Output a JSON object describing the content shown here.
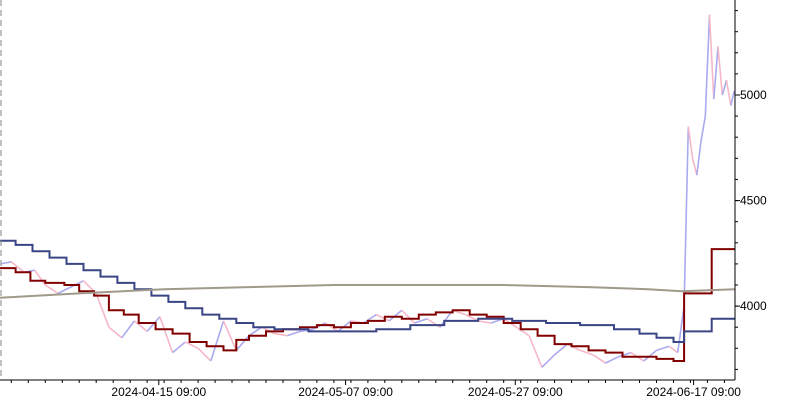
{
  "chart_data": {
    "type": "line",
    "title": "",
    "xlabel": "",
    "ylabel": "",
    "x_range": [
      "2024-03-27 16:00",
      "2024-06-22 06:00"
    ],
    "ylim": [
      3650,
      5450
    ],
    "grid": false,
    "legend": "none",
    "x_ticks": [
      {
        "date": "2024-04-15 09:00",
        "label": "2024-04-15 09:00"
      },
      {
        "date": "2024-05-07 09:00",
        "label": "2024-05-07 09:00"
      },
      {
        "date": "2024-05-27 09:00",
        "label": "2024-05-27 09:00"
      },
      {
        "date": "2024-06-17 09:00",
        "label": "2024-06-17 09:00"
      }
    ],
    "y_ticks": [
      {
        "value": 4000,
        "label": "4000"
      },
      {
        "value": 4500,
        "label": "4500"
      },
      {
        "value": 5000,
        "label": "5000"
      }
    ],
    "series": [
      {
        "kind": "price",
        "up_color": "#aaaaf0",
        "down_color": "#f5b8c8",
        "points": [
          [
            "2024-03-27 18:00",
            4200
          ],
          [
            "2024-03-29 00:00",
            4210
          ],
          [
            "2024-03-30 12:00",
            4160
          ],
          [
            "2024-03-31 18:00",
            4170
          ],
          [
            "2024-04-02 00:00",
            4100
          ],
          [
            "2024-04-03 12:00",
            4060
          ],
          [
            "2024-04-05 00:00",
            4090
          ],
          [
            "2024-04-06 12:00",
            4120
          ],
          [
            "2024-04-08 00:00",
            4060
          ],
          [
            "2024-04-09 12:00",
            3900
          ],
          [
            "2024-04-11 00:00",
            3850
          ],
          [
            "2024-04-12 12:00",
            3930
          ],
          [
            "2024-04-14 00:00",
            3880
          ],
          [
            "2024-04-15 12:00",
            3950
          ],
          [
            "2024-04-17 00:00",
            3780
          ],
          [
            "2024-04-18 12:00",
            3830
          ],
          [
            "2024-04-20 00:00",
            3800
          ],
          [
            "2024-04-21 12:00",
            3740
          ],
          [
            "2024-04-23 00:00",
            3930
          ],
          [
            "2024-04-24 12:00",
            3790
          ],
          [
            "2024-04-26 00:00",
            3860
          ],
          [
            "2024-04-27 12:00",
            3900
          ],
          [
            "2024-04-29 00:00",
            3870
          ],
          [
            "2024-04-30 12:00",
            3860
          ],
          [
            "2024-05-02 00:00",
            3880
          ],
          [
            "2024-05-03 12:00",
            3890
          ],
          [
            "2024-05-05 00:00",
            3920
          ],
          [
            "2024-05-06 12:00",
            3880
          ],
          [
            "2024-05-08 00:00",
            3930
          ],
          [
            "2024-05-09 12:00",
            3920
          ],
          [
            "2024-05-11 00:00",
            3960
          ],
          [
            "2024-05-12 12:00",
            3930
          ],
          [
            "2024-05-14 00:00",
            3980
          ],
          [
            "2024-05-15 12:00",
            3920
          ],
          [
            "2024-05-17 00:00",
            3940
          ],
          [
            "2024-05-18 12:00",
            3900
          ],
          [
            "2024-05-20 00:00",
            3980
          ],
          [
            "2024-05-21 12:00",
            3960
          ],
          [
            "2024-05-23 00:00",
            3930
          ],
          [
            "2024-05-24 12:00",
            3920
          ],
          [
            "2024-05-26 00:00",
            3940
          ],
          [
            "2024-05-27 12:00",
            3900
          ],
          [
            "2024-05-29 00:00",
            3860
          ],
          [
            "2024-05-30 12:00",
            3710
          ],
          [
            "2024-06-01 00:00",
            3770
          ],
          [
            "2024-06-02 12:00",
            3820
          ],
          [
            "2024-06-04 00:00",
            3790
          ],
          [
            "2024-06-05 12:00",
            3770
          ],
          [
            "2024-06-07 00:00",
            3730
          ],
          [
            "2024-06-08 12:00",
            3760
          ],
          [
            "2024-06-10 00:00",
            3780
          ],
          [
            "2024-06-11 12:00",
            3740
          ],
          [
            "2024-06-13 00:00",
            3790
          ],
          [
            "2024-06-14 12:00",
            3810
          ],
          [
            "2024-06-15 12:00",
            3780
          ],
          [
            "2024-06-16 06:00",
            4000
          ],
          [
            "2024-06-16 18:00",
            4850
          ],
          [
            "2024-06-17 06:00",
            4700
          ],
          [
            "2024-06-17 18:00",
            4620
          ],
          [
            "2024-06-18 06:00",
            4780
          ],
          [
            "2024-06-18 18:00",
            4900
          ],
          [
            "2024-06-19 06:00",
            5380
          ],
          [
            "2024-06-19 18:00",
            4980
          ],
          [
            "2024-06-20 06:00",
            5230
          ],
          [
            "2024-06-20 18:00",
            5000
          ],
          [
            "2024-06-21 06:00",
            5070
          ],
          [
            "2024-06-21 18:00",
            4950
          ],
          [
            "2024-06-22 04:00",
            5020
          ]
        ]
      },
      {
        "kind": "line",
        "color": "#800000",
        "step": true,
        "points": [
          [
            "2024-03-27 16:00",
            4180
          ],
          [
            "2024-03-29 12:00",
            4160
          ],
          [
            "2024-03-31 06:00",
            4120
          ],
          [
            "2024-04-02 00:00",
            4110
          ],
          [
            "2024-04-04 06:00",
            4100
          ],
          [
            "2024-04-06 00:00",
            4070
          ],
          [
            "2024-04-07 18:00",
            4050
          ],
          [
            "2024-04-09 12:00",
            3980
          ],
          [
            "2024-04-11 06:00",
            3960
          ],
          [
            "2024-04-13 00:00",
            3920
          ],
          [
            "2024-04-15 00:00",
            3890
          ],
          [
            "2024-04-17 00:00",
            3870
          ],
          [
            "2024-04-19 00:00",
            3830
          ],
          [
            "2024-04-21 00:00",
            3810
          ],
          [
            "2024-04-23 00:00",
            3790
          ],
          [
            "2024-04-24 12:00",
            3840
          ],
          [
            "2024-04-26 00:00",
            3860
          ],
          [
            "2024-04-28 00:00",
            3880
          ],
          [
            "2024-04-30 00:00",
            3890
          ],
          [
            "2024-05-02 00:00",
            3900
          ],
          [
            "2024-05-04 00:00",
            3910
          ],
          [
            "2024-05-06 00:00",
            3900
          ],
          [
            "2024-05-08 00:00",
            3920
          ],
          [
            "2024-05-10 00:00",
            3930
          ],
          [
            "2024-05-12 00:00",
            3950
          ],
          [
            "2024-05-14 00:00",
            3940
          ],
          [
            "2024-05-16 00:00",
            3960
          ],
          [
            "2024-05-18 00:00",
            3970
          ],
          [
            "2024-05-20 00:00",
            3980
          ],
          [
            "2024-05-22 00:00",
            3960
          ],
          [
            "2024-05-24 00:00",
            3950
          ],
          [
            "2024-05-26 00:00",
            3920
          ],
          [
            "2024-05-28 00:00",
            3890
          ],
          [
            "2024-05-30 00:00",
            3860
          ],
          [
            "2024-06-01 00:00",
            3820
          ],
          [
            "2024-06-03 00:00",
            3810
          ],
          [
            "2024-06-05 00:00",
            3790
          ],
          [
            "2024-06-07 00:00",
            3780
          ],
          [
            "2024-06-09 00:00",
            3760
          ],
          [
            "2024-06-11 00:00",
            3760
          ],
          [
            "2024-06-13 00:00",
            3750
          ],
          [
            "2024-06-15 00:00",
            3740
          ],
          [
            "2024-06-16 06:00",
            4060
          ],
          [
            "2024-06-19 12:00",
            4270
          ],
          [
            "2024-06-22 06:00",
            4270
          ]
        ]
      },
      {
        "kind": "line",
        "color": "#3a4585",
        "step": true,
        "points": [
          [
            "2024-03-27 16:00",
            4310
          ],
          [
            "2024-03-29 12:00",
            4290
          ],
          [
            "2024-03-31 12:00",
            4260
          ],
          [
            "2024-04-02 12:00",
            4230
          ],
          [
            "2024-04-04 12:00",
            4200
          ],
          [
            "2024-04-06 12:00",
            4170
          ],
          [
            "2024-04-08 12:00",
            4140
          ],
          [
            "2024-04-10 12:00",
            4110
          ],
          [
            "2024-04-12 12:00",
            4080
          ],
          [
            "2024-04-14 12:00",
            4050
          ],
          [
            "2024-04-16 12:00",
            4020
          ],
          [
            "2024-04-18 12:00",
            3990
          ],
          [
            "2024-04-20 12:00",
            3960
          ],
          [
            "2024-04-22 12:00",
            3940
          ],
          [
            "2024-04-24 12:00",
            3920
          ],
          [
            "2024-04-26 12:00",
            3900
          ],
          [
            "2024-04-29 00:00",
            3890
          ],
          [
            "2024-05-03 00:00",
            3880
          ],
          [
            "2024-05-07 00:00",
            3880
          ],
          [
            "2024-05-11 00:00",
            3890
          ],
          [
            "2024-05-15 00:00",
            3910
          ],
          [
            "2024-05-19 00:00",
            3930
          ],
          [
            "2024-05-23 00:00",
            3940
          ],
          [
            "2024-05-27 00:00",
            3930
          ],
          [
            "2024-05-31 00:00",
            3920
          ],
          [
            "2024-06-04 00:00",
            3910
          ],
          [
            "2024-06-08 00:00",
            3890
          ],
          [
            "2024-06-11 00:00",
            3870
          ],
          [
            "2024-06-13 00:00",
            3850
          ],
          [
            "2024-06-15 00:00",
            3830
          ],
          [
            "2024-06-16 06:00",
            3880
          ],
          [
            "2024-06-19 12:00",
            3940
          ],
          [
            "2024-06-22 06:00",
            3940
          ]
        ]
      },
      {
        "kind": "line",
        "color": "#a09a8a",
        "step": false,
        "points": [
          [
            "2024-03-27 16:00",
            4040
          ],
          [
            "2024-04-06 00:00",
            4060
          ],
          [
            "2024-04-16 00:00",
            4080
          ],
          [
            "2024-04-26 00:00",
            4090
          ],
          [
            "2024-05-06 00:00",
            4100
          ],
          [
            "2024-05-16 00:00",
            4100
          ],
          [
            "2024-05-26 00:00",
            4100
          ],
          [
            "2024-06-05 00:00",
            4090
          ],
          [
            "2024-06-12 00:00",
            4080
          ],
          [
            "2024-06-16 00:00",
            4070
          ],
          [
            "2024-06-22 06:00",
            4080
          ]
        ]
      }
    ]
  }
}
